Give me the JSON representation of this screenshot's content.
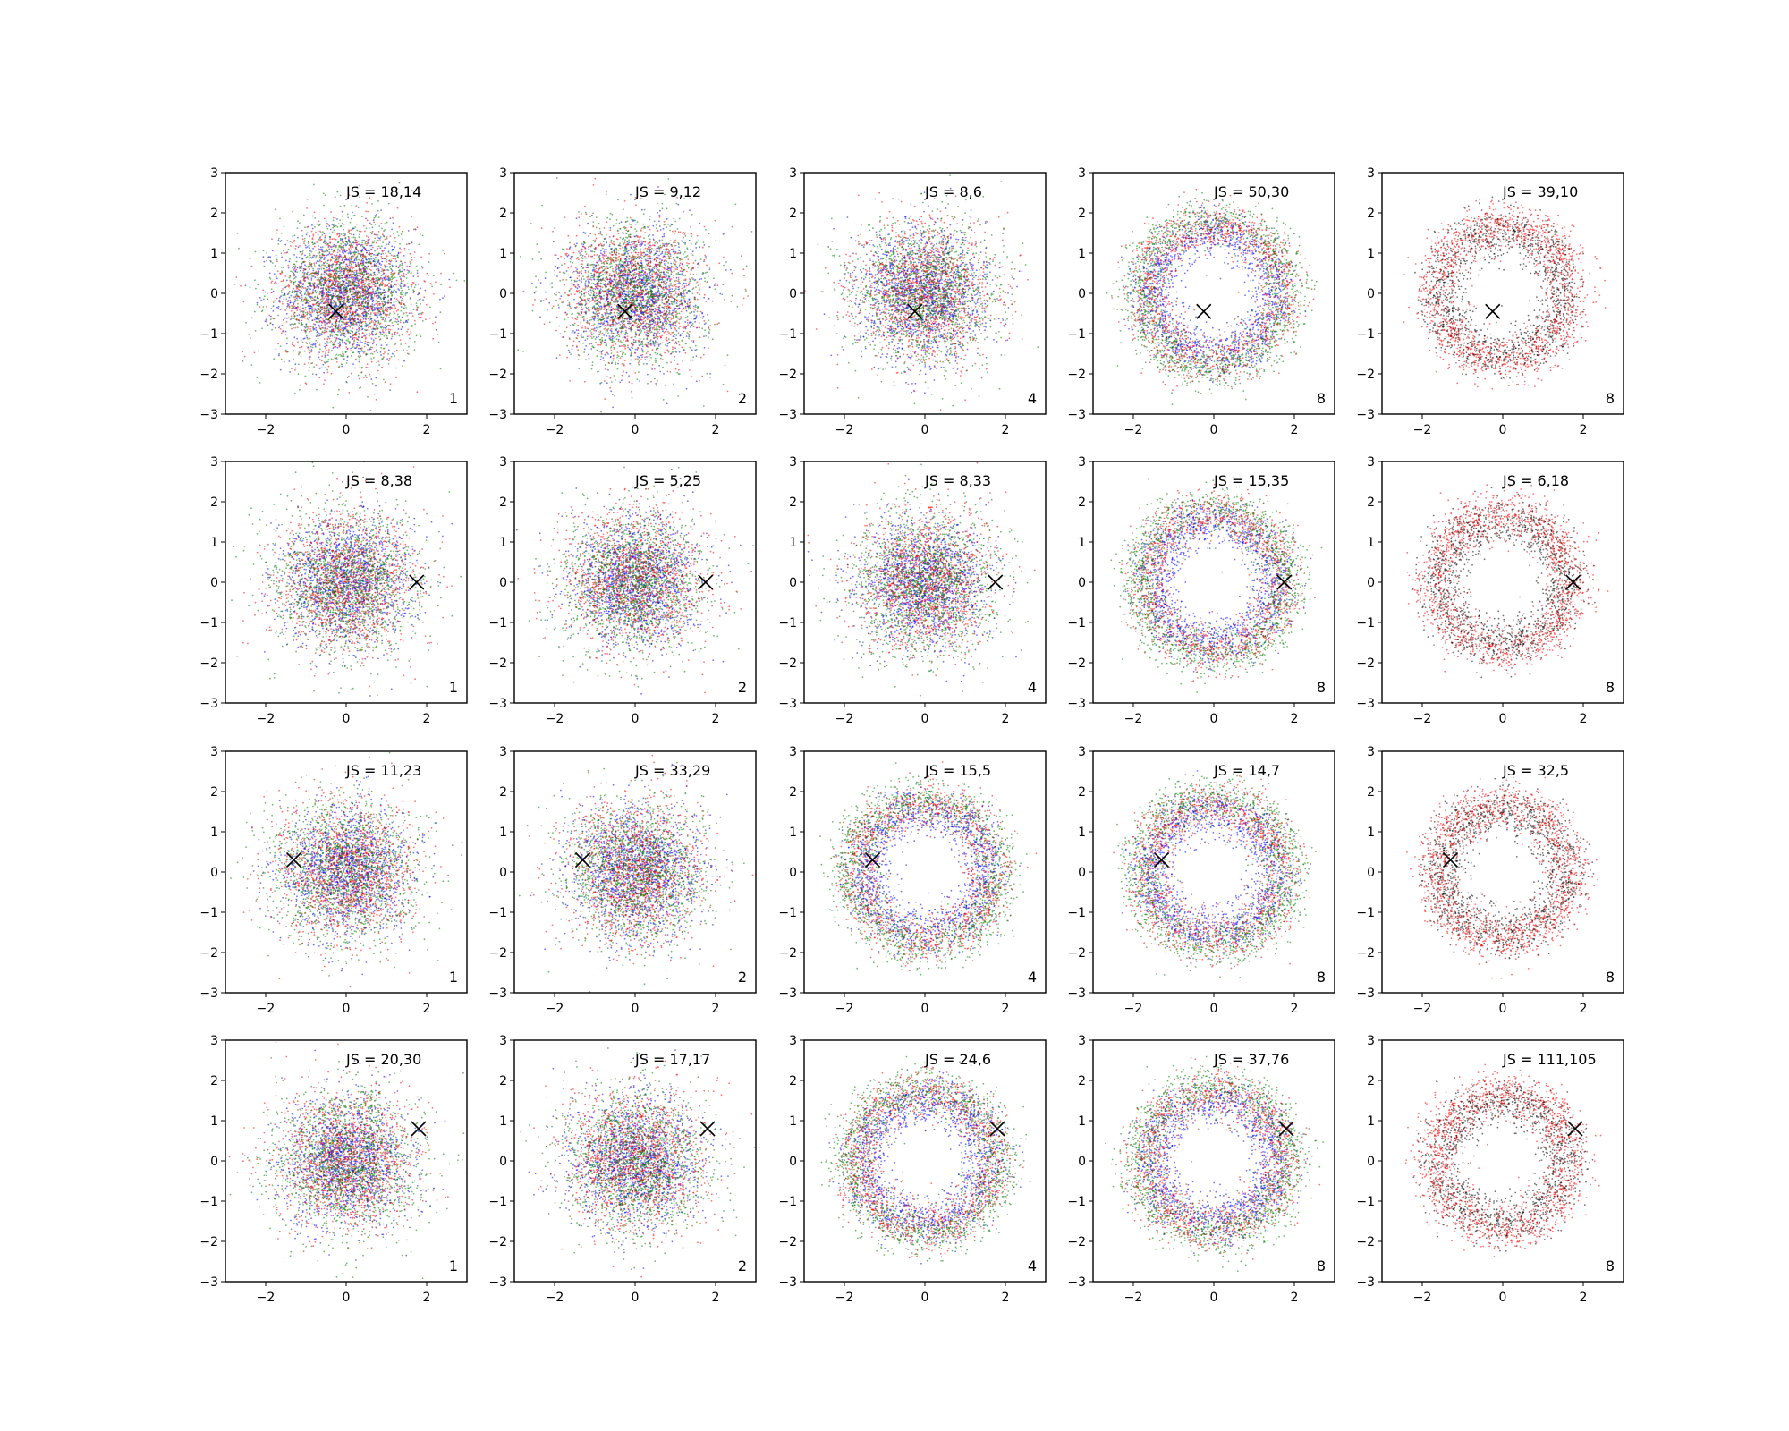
{
  "figure": {
    "rows": 4,
    "cols": 5,
    "series_colors": {
      "blue": "#0000ff",
      "red": "#ff0000",
      "green": "#008000",
      "black": "#000000"
    },
    "marker": "x"
  },
  "chart_data": [
    {
      "type": "scatter",
      "row": 0,
      "col": 0,
      "annotation": "JS = 18,14",
      "corner_label": "1",
      "marker": [
        -0.25,
        -0.45
      ],
      "colors": [
        "blue",
        "red",
        "green"
      ],
      "pattern": "gaussian",
      "xlim": [
        -3,
        3
      ],
      "ylim": [
        -3,
        3
      ],
      "xticks": [
        "−2",
        "0",
        "2"
      ],
      "yticks": [
        "−3",
        "−2",
        "−1",
        "0",
        "1",
        "2",
        "3"
      ]
    },
    {
      "type": "scatter",
      "row": 0,
      "col": 1,
      "annotation": "JS = 9,12",
      "corner_label": "2",
      "marker": [
        -0.25,
        -0.45
      ],
      "colors": [
        "blue",
        "red",
        "green"
      ],
      "pattern": "gaussian",
      "xlim": [
        -3,
        3
      ],
      "ylim": [
        -3,
        3
      ],
      "xticks": [
        "−2",
        "0",
        "2"
      ],
      "yticks": [
        "−3",
        "−2",
        "−1",
        "0",
        "1",
        "2",
        "3"
      ]
    },
    {
      "type": "scatter",
      "row": 0,
      "col": 2,
      "annotation": "JS = 8,6",
      "corner_label": "4",
      "marker": [
        -0.25,
        -0.45
      ],
      "colors": [
        "blue",
        "red",
        "green"
      ],
      "pattern": "gaussian",
      "xlim": [
        -3,
        3
      ],
      "ylim": [
        -3,
        3
      ],
      "xticks": [
        "−2",
        "0",
        "2"
      ],
      "yticks": [
        "−3",
        "−2",
        "−1",
        "0",
        "1",
        "2",
        "3"
      ]
    },
    {
      "type": "scatter",
      "row": 0,
      "col": 3,
      "annotation": "JS = 50,30",
      "corner_label": "8",
      "marker": [
        -0.25,
        -0.45
      ],
      "colors": [
        "blue",
        "red",
        "green"
      ],
      "pattern": "ring",
      "xlim": [
        -3,
        3
      ],
      "ylim": [
        -3,
        3
      ],
      "xticks": [
        "−2",
        "0",
        "2"
      ],
      "yticks": [
        "−3",
        "−2",
        "−1",
        "0",
        "1",
        "2",
        "3"
      ]
    },
    {
      "type": "scatter",
      "row": 0,
      "col": 4,
      "annotation": "JS = 39,10",
      "corner_label": "8",
      "marker": [
        -0.25,
        -0.45
      ],
      "colors": [
        "black",
        "red"
      ],
      "pattern": "ring",
      "xlim": [
        -3,
        3
      ],
      "ylim": [
        -3,
        3
      ],
      "xticks": [
        "−2",
        "0",
        "2"
      ],
      "yticks": [
        "−3",
        "−2",
        "−1",
        "0",
        "1",
        "2",
        "3"
      ]
    },
    {
      "type": "scatter",
      "row": 1,
      "col": 0,
      "annotation": "JS = 8,38",
      "corner_label": "1",
      "marker": [
        1.75,
        0.0
      ],
      "colors": [
        "blue",
        "red",
        "green"
      ],
      "pattern": "gaussian",
      "xlim": [
        -3,
        3
      ],
      "ylim": [
        -3,
        3
      ],
      "xticks": [
        "−2",
        "0",
        "2"
      ],
      "yticks": [
        "−3",
        "−2",
        "−1",
        "0",
        "1",
        "2",
        "3"
      ]
    },
    {
      "type": "scatter",
      "row": 1,
      "col": 1,
      "annotation": "JS = 5,25",
      "corner_label": "2",
      "marker": [
        1.75,
        0.0
      ],
      "colors": [
        "blue",
        "red",
        "green"
      ],
      "pattern": "gaussian",
      "xlim": [
        -3,
        3
      ],
      "ylim": [
        -3,
        3
      ],
      "xticks": [
        "−2",
        "0",
        "2"
      ],
      "yticks": [
        "−3",
        "−2",
        "−1",
        "0",
        "1",
        "2",
        "3"
      ]
    },
    {
      "type": "scatter",
      "row": 1,
      "col": 2,
      "annotation": "JS = 8,33",
      "corner_label": "4",
      "marker": [
        1.75,
        0.0
      ],
      "colors": [
        "blue",
        "red",
        "green"
      ],
      "pattern": "gaussian",
      "xlim": [
        -3,
        3
      ],
      "ylim": [
        -3,
        3
      ],
      "xticks": [
        "−2",
        "0",
        "2"
      ],
      "yticks": [
        "−3",
        "−2",
        "−1",
        "0",
        "1",
        "2",
        "3"
      ]
    },
    {
      "type": "scatter",
      "row": 1,
      "col": 3,
      "annotation": "JS = 15,35",
      "corner_label": "8",
      "marker": [
        1.75,
        0.0
      ],
      "colors": [
        "blue",
        "red",
        "green"
      ],
      "pattern": "ring",
      "xlim": [
        -3,
        3
      ],
      "ylim": [
        -3,
        3
      ],
      "xticks": [
        "−2",
        "0",
        "2"
      ],
      "yticks": [
        "−3",
        "−2",
        "−1",
        "0",
        "1",
        "2",
        "3"
      ]
    },
    {
      "type": "scatter",
      "row": 1,
      "col": 4,
      "annotation": "JS = 6,18",
      "corner_label": "8",
      "marker": [
        1.75,
        0.0
      ],
      "colors": [
        "black",
        "red"
      ],
      "pattern": "ring",
      "xlim": [
        -3,
        3
      ],
      "ylim": [
        -3,
        3
      ],
      "xticks": [
        "−2",
        "0",
        "2"
      ],
      "yticks": [
        "−3",
        "−2",
        "−1",
        "0",
        "1",
        "2",
        "3"
      ]
    },
    {
      "type": "scatter",
      "row": 2,
      "col": 0,
      "annotation": "JS = 11,23",
      "corner_label": "1",
      "marker": [
        -1.3,
        0.3
      ],
      "colors": [
        "blue",
        "red",
        "green"
      ],
      "pattern": "gaussian",
      "xlim": [
        -3,
        3
      ],
      "ylim": [
        -3,
        3
      ],
      "xticks": [
        "−2",
        "0",
        "2"
      ],
      "yticks": [
        "−3",
        "−2",
        "−1",
        "0",
        "1",
        "2",
        "3"
      ]
    },
    {
      "type": "scatter",
      "row": 2,
      "col": 1,
      "annotation": "JS = 33,29",
      "corner_label": "2",
      "marker": [
        -1.3,
        0.3
      ],
      "colors": [
        "blue",
        "red",
        "green"
      ],
      "pattern": "gaussian",
      "xlim": [
        -3,
        3
      ],
      "ylim": [
        -3,
        3
      ],
      "xticks": [
        "−2",
        "0",
        "2"
      ],
      "yticks": [
        "−3",
        "−2",
        "−1",
        "0",
        "1",
        "2",
        "3"
      ]
    },
    {
      "type": "scatter",
      "row": 2,
      "col": 2,
      "annotation": "JS = 15,5",
      "corner_label": "4",
      "marker": [
        -1.3,
        0.3
      ],
      "colors": [
        "blue",
        "red",
        "green"
      ],
      "pattern": "ring",
      "xlim": [
        -3,
        3
      ],
      "ylim": [
        -3,
        3
      ],
      "xticks": [
        "−2",
        "0",
        "2"
      ],
      "yticks": [
        "−3",
        "−2",
        "−1",
        "0",
        "1",
        "2",
        "3"
      ]
    },
    {
      "type": "scatter",
      "row": 2,
      "col": 3,
      "annotation": "JS = 14,7",
      "corner_label": "8",
      "marker": [
        -1.3,
        0.3
      ],
      "colors": [
        "blue",
        "red",
        "green"
      ],
      "pattern": "ring",
      "xlim": [
        -3,
        3
      ],
      "ylim": [
        -3,
        3
      ],
      "xticks": [
        "−2",
        "0",
        "2"
      ],
      "yticks": [
        "−3",
        "−2",
        "−1",
        "0",
        "1",
        "2",
        "3"
      ]
    },
    {
      "type": "scatter",
      "row": 2,
      "col": 4,
      "annotation": "JS = 32,5",
      "corner_label": "8",
      "marker": [
        -1.3,
        0.3
      ],
      "colors": [
        "black",
        "red"
      ],
      "pattern": "ring",
      "xlim": [
        -3,
        3
      ],
      "ylim": [
        -3,
        3
      ],
      "xticks": [
        "−2",
        "0",
        "2"
      ],
      "yticks": [
        "−3",
        "−2",
        "−1",
        "0",
        "1",
        "2",
        "3"
      ]
    },
    {
      "type": "scatter",
      "row": 3,
      "col": 0,
      "annotation": "JS = 20,30",
      "corner_label": "1",
      "marker": [
        1.8,
        0.8
      ],
      "colors": [
        "blue",
        "red",
        "green"
      ],
      "pattern": "gaussian",
      "xlim": [
        -3,
        3
      ],
      "ylim": [
        -3,
        3
      ],
      "xticks": [
        "−2",
        "0",
        "2"
      ],
      "yticks": [
        "−3",
        "−2",
        "−1",
        "0",
        "1",
        "2",
        "3"
      ]
    },
    {
      "type": "scatter",
      "row": 3,
      "col": 1,
      "annotation": "JS = 17,17",
      "corner_label": "2",
      "marker": [
        1.8,
        0.8
      ],
      "colors": [
        "blue",
        "red",
        "green"
      ],
      "pattern": "gaussian",
      "xlim": [
        -3,
        3
      ],
      "ylim": [
        -3,
        3
      ],
      "xticks": [
        "−2",
        "0",
        "2"
      ],
      "yticks": [
        "−3",
        "−2",
        "−1",
        "0",
        "1",
        "2",
        "3"
      ]
    },
    {
      "type": "scatter",
      "row": 3,
      "col": 2,
      "annotation": "JS = 24,6",
      "corner_label": "4",
      "marker": [
        1.8,
        0.8
      ],
      "colors": [
        "blue",
        "red",
        "green"
      ],
      "pattern": "ring",
      "xlim": [
        -3,
        3
      ],
      "ylim": [
        -3,
        3
      ],
      "xticks": [
        "−2",
        "0",
        "2"
      ],
      "yticks": [
        "−3",
        "−2",
        "−1",
        "0",
        "1",
        "2",
        "3"
      ]
    },
    {
      "type": "scatter",
      "row": 3,
      "col": 3,
      "annotation": "JS = 37,76",
      "corner_label": "8",
      "marker": [
        1.8,
        0.8
      ],
      "colors": [
        "blue",
        "red",
        "green"
      ],
      "pattern": "ring",
      "xlim": [
        -3,
        3
      ],
      "ylim": [
        -3,
        3
      ],
      "xticks": [
        "−2",
        "0",
        "2"
      ],
      "yticks": [
        "−3",
        "−2",
        "−1",
        "0",
        "1",
        "2",
        "3"
      ]
    },
    {
      "type": "scatter",
      "row": 3,
      "col": 4,
      "annotation": "JS = 111,105",
      "corner_label": "8",
      "marker": [
        1.8,
        0.8
      ],
      "colors": [
        "black",
        "red"
      ],
      "pattern": "ring",
      "xlim": [
        -3,
        3
      ],
      "ylim": [
        -3,
        3
      ],
      "xticks": [
        "−2",
        "0",
        "2"
      ],
      "yticks": [
        "−3",
        "−2",
        "−1",
        "0",
        "1",
        "2",
        "3"
      ]
    }
  ]
}
